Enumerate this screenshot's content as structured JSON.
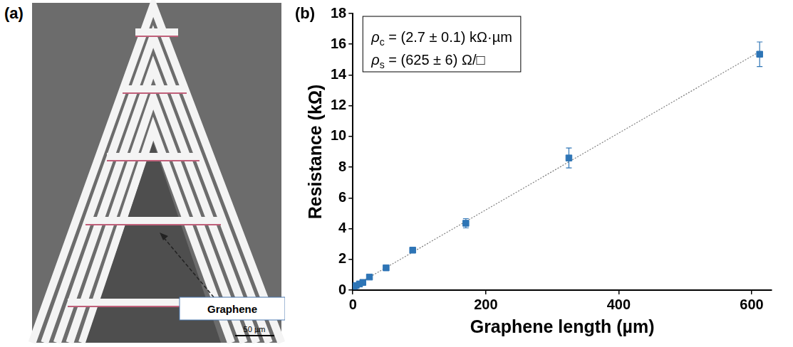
{
  "image_panel": {
    "label": "(a)",
    "annotation": "Graphene",
    "scale_bar": "50 µm"
  },
  "chart_data": {
    "panel_label": "(b)",
    "type": "scatter",
    "x_label": "Graphene length (µm)",
    "y_label": "Resistance (kΩ)",
    "xlim": [
      0,
      630
    ],
    "xticks": [
      0,
      200,
      400,
      600
    ],
    "ylim": [
      0,
      18
    ],
    "yticks": [
      0,
      2,
      4,
      6,
      8,
      10,
      12,
      14,
      16,
      18
    ],
    "grid": false,
    "annotations": [
      {
        "main": "ρ",
        "sub": "c",
        "rest": " = (2.7 ± 0.1) kΩ·µm"
      },
      {
        "main": "ρ",
        "sub": "s",
        "rest": " = (625 ± 6) Ω/□"
      }
    ],
    "series": [
      {
        "type": "scatter",
        "marker": "square",
        "color": "#2e75b6",
        "x": [
          2,
          5,
          10,
          15,
          25,
          50,
          90,
          170,
          325,
          612
        ],
        "values": [
          0.25,
          0.3,
          0.4,
          0.5,
          0.85,
          1.45,
          2.6,
          4.35,
          8.6,
          15.35
        ],
        "error": [
          0.05,
          0.05,
          0.05,
          0.1,
          0.1,
          0.1,
          0.1,
          0.3,
          0.65,
          0.8
        ]
      },
      {
        "type": "line",
        "line_style": "dotted",
        "color": "#7f7f7f",
        "x": [
          0,
          612
        ],
        "values": [
          0.22,
          15.52
        ]
      }
    ]
  }
}
